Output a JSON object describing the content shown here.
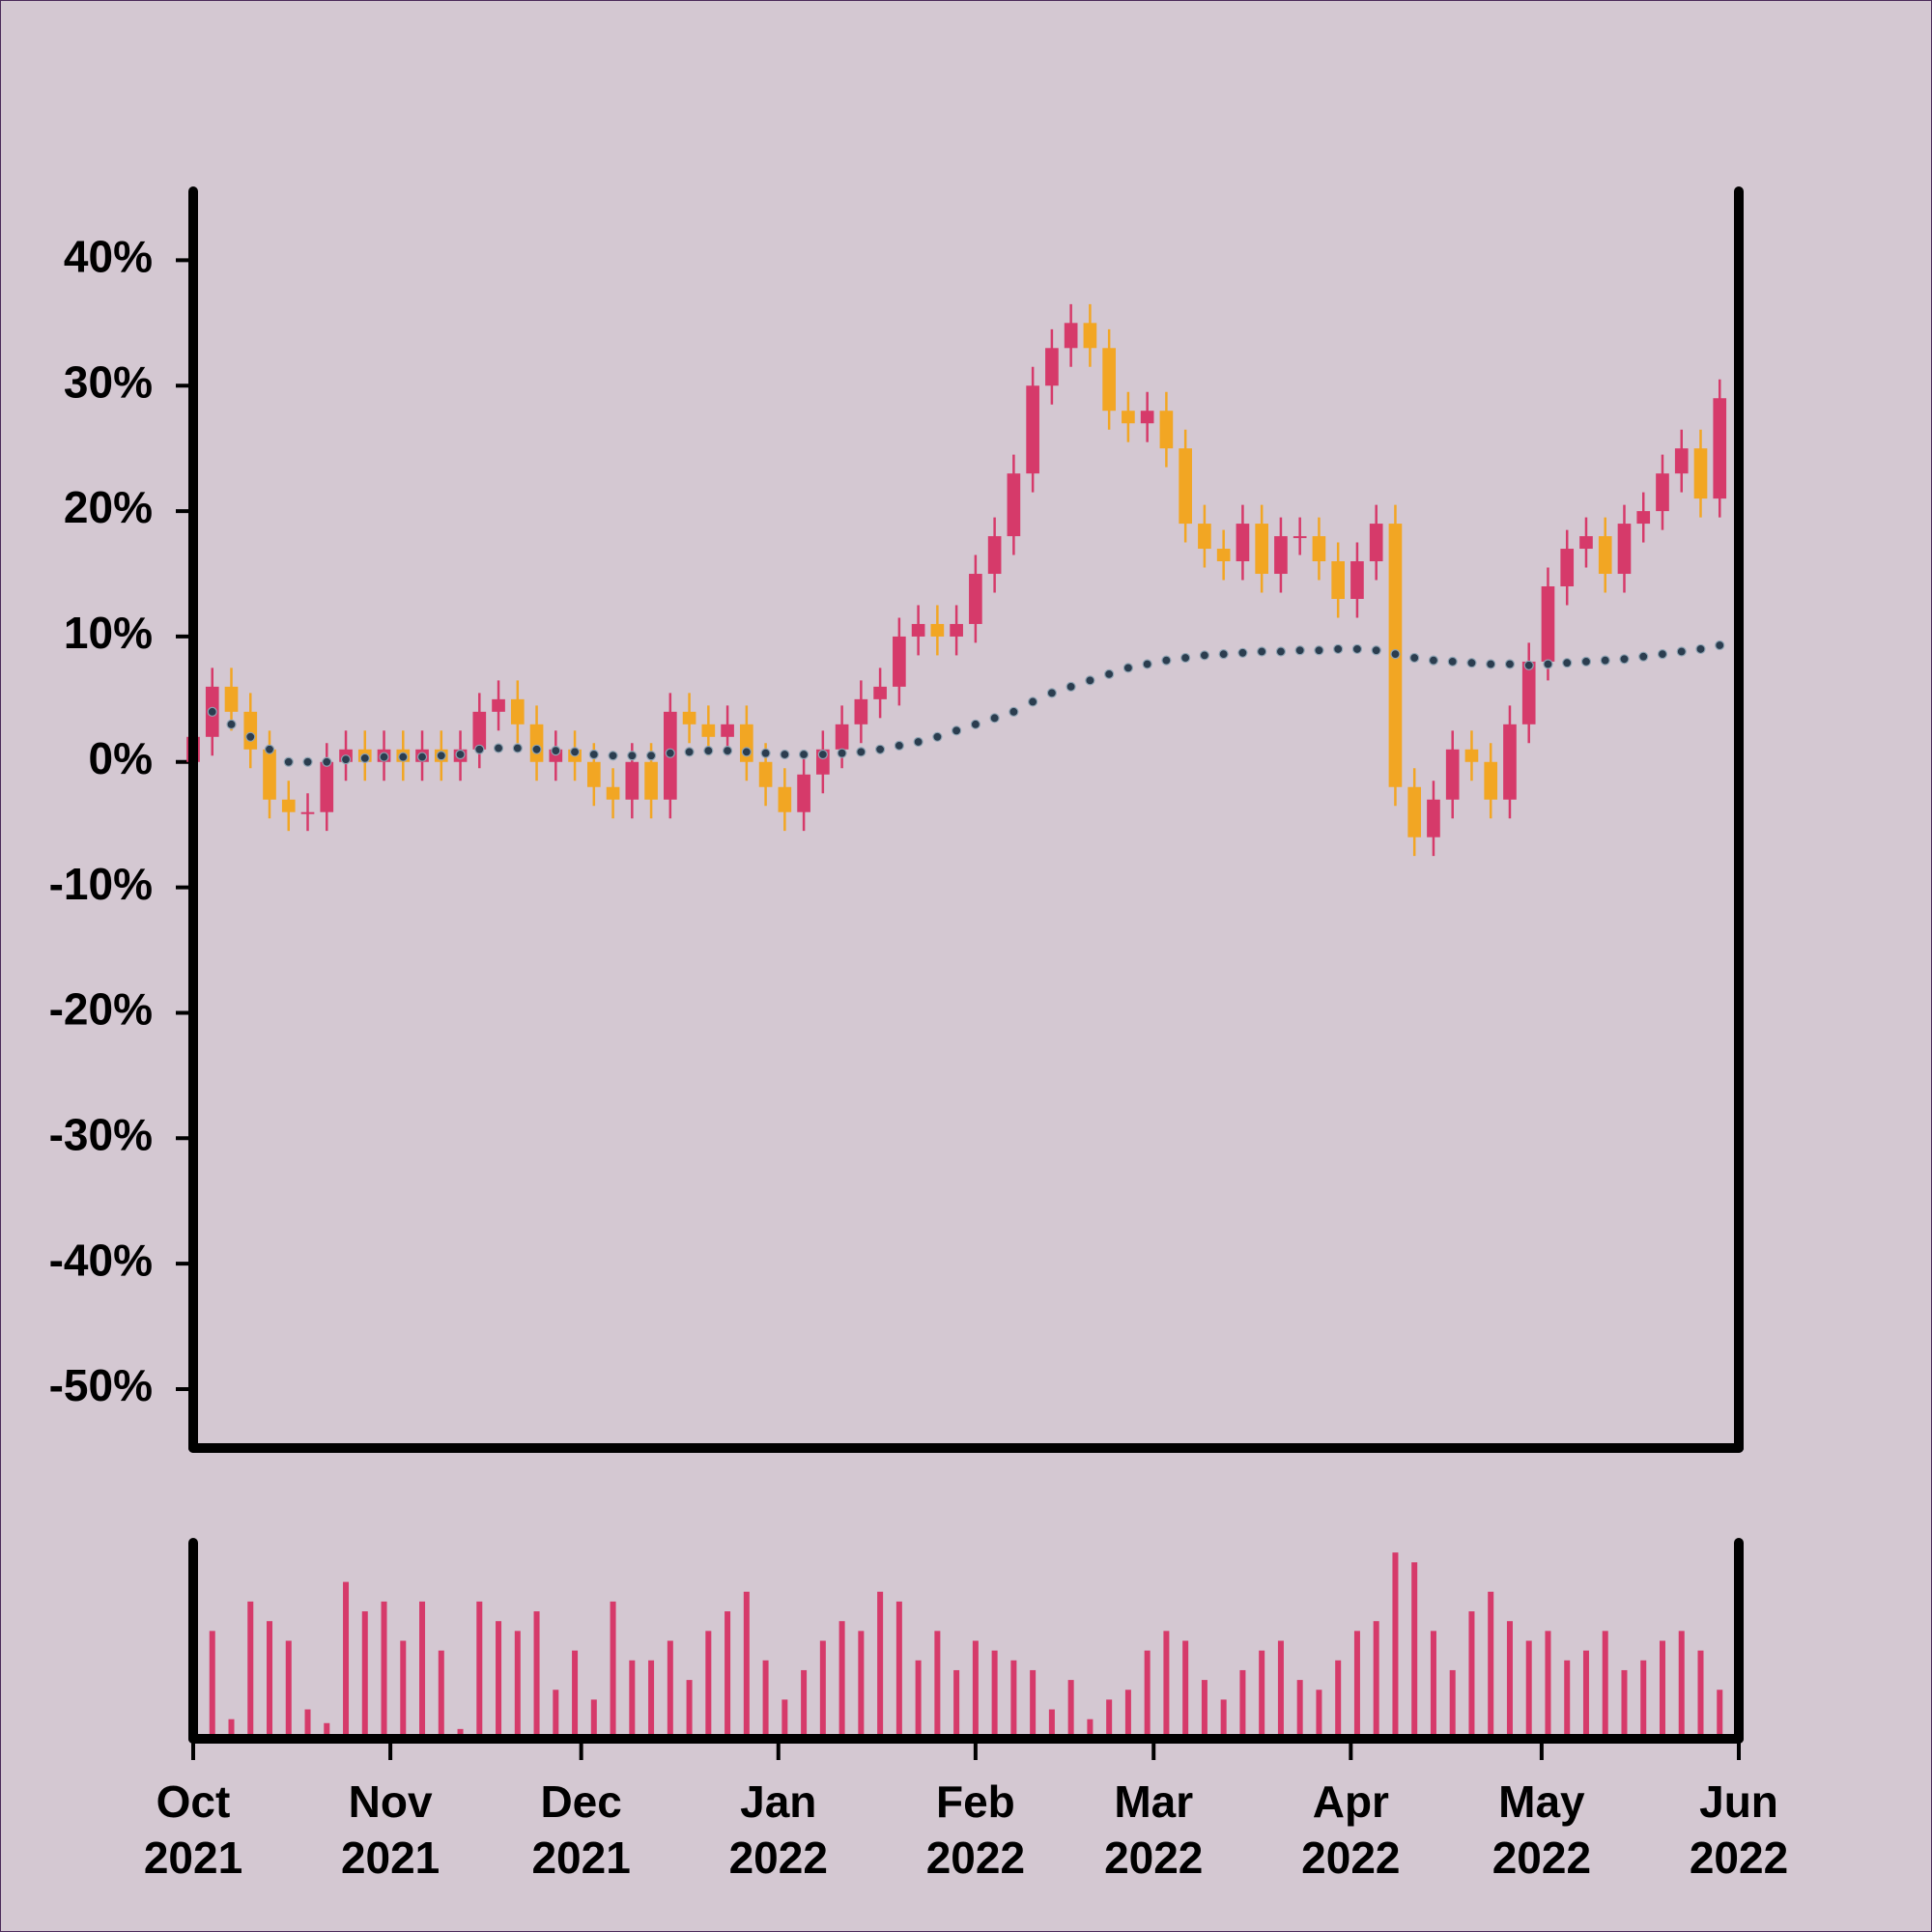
{
  "chart_data": {
    "type": "candlestick",
    "x": [
      0,
      3,
      6,
      9,
      12,
      15,
      18,
      21,
      24,
      27,
      30,
      33,
      36,
      39,
      42,
      45,
      48,
      51,
      54,
      57,
      60,
      63,
      66,
      69,
      72,
      75,
      78,
      81,
      84,
      87,
      90,
      93,
      96,
      99,
      102,
      105,
      108,
      111,
      114,
      117,
      120,
      123,
      126,
      129,
      132,
      135,
      138,
      141,
      144,
      147,
      150,
      153,
      156,
      159,
      162,
      165,
      168,
      171,
      174,
      177,
      180,
      183,
      186,
      189,
      192,
      195,
      198,
      201,
      204,
      207,
      210,
      213,
      216,
      219,
      222,
      225,
      228,
      231,
      234,
      237,
      240
    ],
    "open": [
      0,
      2,
      6,
      4,
      1,
      -3,
      -4,
      -4,
      0,
      1,
      0,
      1,
      0,
      1,
      0,
      1,
      4,
      5,
      3,
      0,
      1,
      0,
      -2,
      -3,
      0,
      -3,
      4,
      3,
      2,
      3,
      0,
      -2,
      -4,
      -1,
      1,
      3,
      5,
      6,
      10,
      11,
      10,
      11,
      15,
      18,
      23,
      30,
      33,
      35,
      33,
      28,
      27,
      28,
      25,
      19,
      17,
      16,
      19,
      15,
      18,
      18,
      16,
      13,
      16,
      19,
      -2,
      -6,
      -3,
      1,
      0,
      -3,
      3,
      8,
      14,
      17,
      18,
      15,
      19,
      20,
      23,
      25,
      21
    ],
    "high": [
      3.5,
      7.5,
      7.5,
      5.5,
      2.5,
      -1.5,
      -2.5,
      1.5,
      2.5,
      2.5,
      2.5,
      2.5,
      2.5,
      2.5,
      2.5,
      5.5,
      6.5,
      6.5,
      4.5,
      2.5,
      2.5,
      1.5,
      -0.5,
      1.5,
      1.5,
      5.5,
      5.5,
      4.5,
      4.5,
      4.5,
      1.5,
      -0.5,
      0.5,
      2.5,
      4.5,
      6.5,
      7.5,
      11.5,
      12.5,
      12.5,
      12.5,
      16.5,
      19.5,
      24.5,
      31.5,
      34.5,
      36.5,
      36.5,
      34.5,
      29.5,
      29.5,
      29.5,
      26.5,
      20.5,
      18.5,
      20.5,
      20.5,
      19.5,
      19.5,
      19.5,
      17.5,
      17.5,
      20.5,
      20.5,
      -0.5,
      -1.5,
      2.5,
      2.5,
      1.5,
      4.5,
      9.5,
      15.5,
      18.5,
      19.5,
      19.5,
      20.5,
      21.5,
      24.5,
      26.5,
      26.5,
      30.5
    ],
    "low": [
      -1.5,
      0.5,
      2.5,
      -0.5,
      -4.5,
      -5.5,
      -5.5,
      -5.5,
      -1.5,
      -1.5,
      -1.5,
      -1.5,
      -1.5,
      -1.5,
      -1.5,
      -0.5,
      2.5,
      1.5,
      -1.5,
      -1.5,
      -1.5,
      -3.5,
      -4.5,
      -4.5,
      -4.5,
      -4.5,
      1.5,
      0.5,
      0.5,
      -1.5,
      -3.5,
      -5.5,
      -5.5,
      -2.5,
      -0.5,
      1.5,
      3.5,
      4.5,
      8.5,
      8.5,
      8.5,
      9.5,
      13.5,
      16.5,
      21.5,
      28.5,
      31.5,
      31.5,
      26.5,
      25.5,
      25.5,
      23.5,
      17.5,
      15.5,
      14.5,
      14.5,
      13.5,
      13.5,
      16.5,
      14.5,
      11.5,
      11.5,
      14.5,
      -3.5,
      -7.5,
      -7.5,
      -4.5,
      -1.5,
      -4.5,
      -4.5,
      1.5,
      6.5,
      12.5,
      15.5,
      13.5,
      13.5,
      17.5,
      18.5,
      21.5,
      19.5,
      19.5
    ],
    "close": [
      2,
      6,
      4,
      1,
      -3,
      -4,
      -4,
      0,
      1,
      0,
      1,
      0,
      1,
      0,
      1,
      4,
      5,
      3,
      0,
      1,
      0,
      -2,
      -3,
      0,
      -3,
      4,
      3,
      2,
      3,
      0,
      -2,
      -4,
      -1,
      1,
      3,
      5,
      6,
      10,
      11,
      10,
      11,
      15,
      18,
      23,
      30,
      33,
      35,
      33,
      28,
      27,
      28,
      25,
      19,
      17,
      16,
      19,
      15,
      18,
      18,
      16,
      13,
      16,
      19,
      -2,
      -6,
      -3,
      1,
      0,
      -3,
      3,
      8,
      14,
      17,
      18,
      15,
      19,
      20,
      23,
      25,
      21,
      29
    ],
    "up_color": "#d63a6a",
    "down_color": "#f2a623",
    "xlim": [
      0,
      243
    ],
    "ylim": [
      -54.7,
      45.5
    ],
    "yticks": [
      {
        "value": -50,
        "label": "-50%"
      },
      {
        "value": -40,
        "label": "-40%"
      },
      {
        "value": -30,
        "label": "-30%"
      },
      {
        "value": -20,
        "label": "-20%"
      },
      {
        "value": -10,
        "label": "-10%"
      },
      {
        "value": 0,
        "label": "0%"
      },
      {
        "value": 10,
        "label": "10%"
      },
      {
        "value": 20,
        "label": "20%"
      },
      {
        "value": 30,
        "label": "30%"
      },
      {
        "value": 40,
        "label": "40%"
      }
    ],
    "xticks": [
      {
        "value": 0,
        "label": "Oct\n2021"
      },
      {
        "value": 31,
        "label": "Nov\n2021"
      },
      {
        "value": 61,
        "label": "Dec\n2021"
      },
      {
        "value": 92,
        "label": "Jan\n2022"
      },
      {
        "value": 123,
        "label": "Feb\n2022"
      },
      {
        "value": 151,
        "label": "Mar\n2022"
      },
      {
        "value": 182,
        "label": "Apr\n2022"
      },
      {
        "value": 212,
        "label": "May\n2022"
      },
      {
        "value": 243,
        "label": "Jun\n2022"
      }
    ],
    "moving_average": {
      "color": "#2b3d4f",
      "values": [
        3,
        4,
        3,
        2,
        1,
        0,
        0,
        0,
        0.2,
        0.3,
        0.4,
        0.4,
        0.4,
        0.5,
        0.6,
        1,
        1.1,
        1.1,
        1,
        0.9,
        0.8,
        0.6,
        0.5,
        0.5,
        0.5,
        0.7,
        0.8,
        0.9,
        0.9,
        0.8,
        0.7,
        0.6,
        0.6,
        0.6,
        0.7,
        0.8,
        1,
        1.3,
        1.6,
        2,
        2.5,
        3,
        3.5,
        4,
        4.8,
        5.5,
        6,
        6.5,
        7,
        7.5,
        7.8,
        8.1,
        8.3,
        8.5,
        8.6,
        8.7,
        8.8,
        8.8,
        8.9,
        8.9,
        9,
        9,
        8.9,
        8.6,
        8.3,
        8.1,
        8,
        7.9,
        7.8,
        7.8,
        7.7,
        7.8,
        7.9,
        8,
        8.1,
        8.2,
        8.4,
        8.6,
        8.8,
        9,
        9.3
      ]
    },
    "volume": {
      "color": "#d63a6a",
      "ylim": [
        0,
        100
      ],
      "values": [
        65,
        55,
        10,
        70,
        60,
        50,
        15,
        8,
        80,
        65,
        70,
        50,
        70,
        45,
        5,
        70,
        60,
        55,
        65,
        25,
        45,
        20,
        70,
        40,
        40,
        50,
        30,
        55,
        65,
        75,
        40,
        20,
        35,
        50,
        60,
        55,
        75,
        70,
        40,
        55,
        35,
        50,
        45,
        40,
        35,
        15,
        30,
        10,
        20,
        25,
        45,
        55,
        50,
        30,
        20,
        35,
        45,
        50,
        30,
        25,
        40,
        55,
        60,
        95,
        90,
        55,
        35,
        65,
        75,
        60,
        50,
        55,
        40,
        45,
        55,
        35,
        40,
        50,
        55,
        45,
        25
      ]
    }
  }
}
